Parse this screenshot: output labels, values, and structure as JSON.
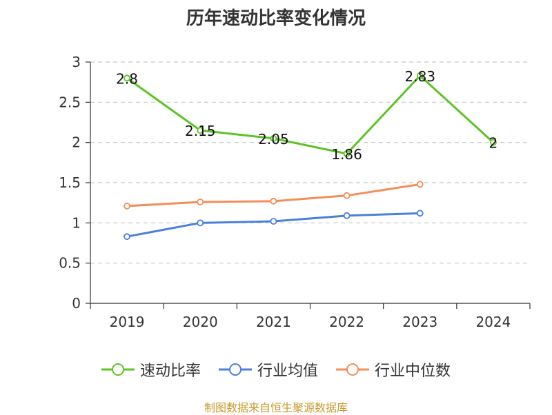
{
  "chart_data": {
    "type": "line",
    "title": "历年速动比率变化情况",
    "categories": [
      "2019",
      "2020",
      "2021",
      "2022",
      "2023",
      "2024"
    ],
    "ylim": [
      0,
      3
    ],
    "yticks": [
      "0",
      "0.5",
      "1",
      "1.5",
      "2",
      "2.5",
      "3"
    ],
    "grid": true,
    "legend_position": "bottom",
    "series": [
      {
        "name": "速动比率",
        "color": "#5bc424",
        "values": [
          2.8,
          2.15,
          2.05,
          1.86,
          2.83,
          2
        ],
        "labels": [
          "2.8",
          "2.15",
          "2.05",
          "1.86",
          "2.83",
          "2"
        ]
      },
      {
        "name": "行业均值",
        "color": "#4a7fdb",
        "values": [
          0.83,
          1.0,
          1.02,
          1.09,
          1.12,
          null
        ]
      },
      {
        "name": "行业中位数",
        "color": "#f58d56",
        "values": [
          1.21,
          1.26,
          1.27,
          1.34,
          1.48,
          null
        ]
      }
    ]
  },
  "source": "制图数据来自恒生聚源数据库"
}
